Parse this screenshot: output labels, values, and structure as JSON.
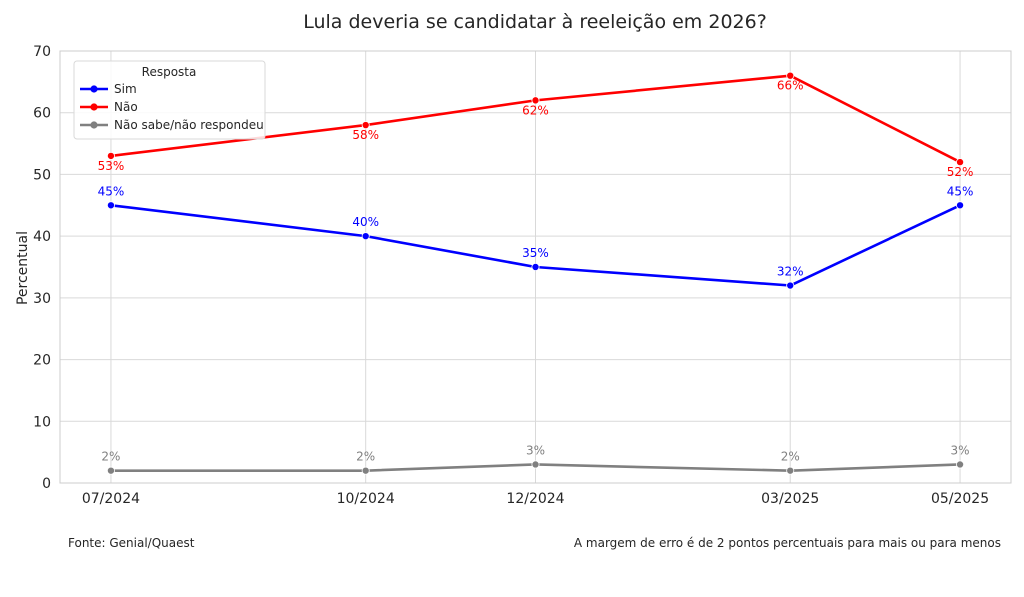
{
  "chart_data": {
    "type": "line",
    "title": "Lula deveria se candidatar à reeleição em 2026?",
    "xlabel": "",
    "ylabel": "Percentual",
    "x": [
      "07/2024",
      "10/2024",
      "12/2024",
      "03/2025",
      "05/2025"
    ],
    "x_dates": [
      "2024-07",
      "2024-10",
      "2024-12",
      "2025-03",
      "2025-05"
    ],
    "ylim": [
      0,
      70
    ],
    "yticks": [
      0,
      10,
      20,
      30,
      40,
      50,
      60,
      70
    ],
    "grid": true,
    "legend": {
      "title": "Resposta",
      "placement": "top-left"
    },
    "series": [
      {
        "name": "Sim",
        "color": "#0000ff",
        "values": [
          45,
          40,
          35,
          32,
          45
        ],
        "labels": [
          "45%",
          "40%",
          "35%",
          "32%",
          "45%"
        ]
      },
      {
        "name": "Não",
        "color": "#ff0000",
        "values": [
          53,
          58,
          62,
          66,
          52
        ],
        "labels": [
          "53%",
          "58%",
          "62%",
          "66%",
          "52%"
        ]
      },
      {
        "name": "Não sabe/não respondeu",
        "color": "#808080",
        "values": [
          2,
          2,
          3,
          2,
          3
        ],
        "labels": [
          "2%",
          "2%",
          "3%",
          "2%",
          "3%"
        ]
      }
    ]
  },
  "notes": {
    "source": "Fonte: Genial/Quaest",
    "margin": "A margem de erro é de 2 pontos percentuais para mais ou para menos"
  }
}
